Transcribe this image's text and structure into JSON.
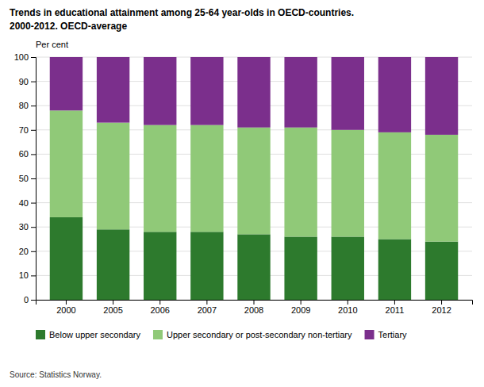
{
  "chart_data": {
    "type": "bar",
    "stacked": true,
    "title": "Trends in educational attainment among 25-64 year-olds in OECD-countries.",
    "subtitle": "2000-2012. OECD-average",
    "ylabel": "Per cent",
    "annotations": [
      "Source: Statistics Norway."
    ],
    "categories": [
      "2000",
      "2005",
      "2006",
      "2007",
      "2008",
      "2009",
      "2010",
      "2011",
      "2012"
    ],
    "series": [
      {
        "name": "Below upper secondary",
        "color": "#2d7a2d",
        "values": [
          34,
          29,
          28,
          28,
          27,
          26,
          26,
          25,
          24
        ]
      },
      {
        "name": "Upper secondary or post-secondary non-tertiary",
        "color": "#90c978",
        "values": [
          44,
          44,
          44,
          44,
          44,
          45,
          44,
          44,
          44
        ]
      },
      {
        "name": "Tertiary",
        "color": "#7b2f8c",
        "values": [
          22,
          27,
          28,
          28,
          29,
          29,
          30,
          31,
          32
        ]
      }
    ],
    "ylim": [
      0,
      100
    ],
    "yticks": [
      0,
      10,
      20,
      30,
      40,
      50,
      60,
      70,
      80,
      90,
      100
    ],
    "grid": true,
    "legend": "bottom"
  }
}
